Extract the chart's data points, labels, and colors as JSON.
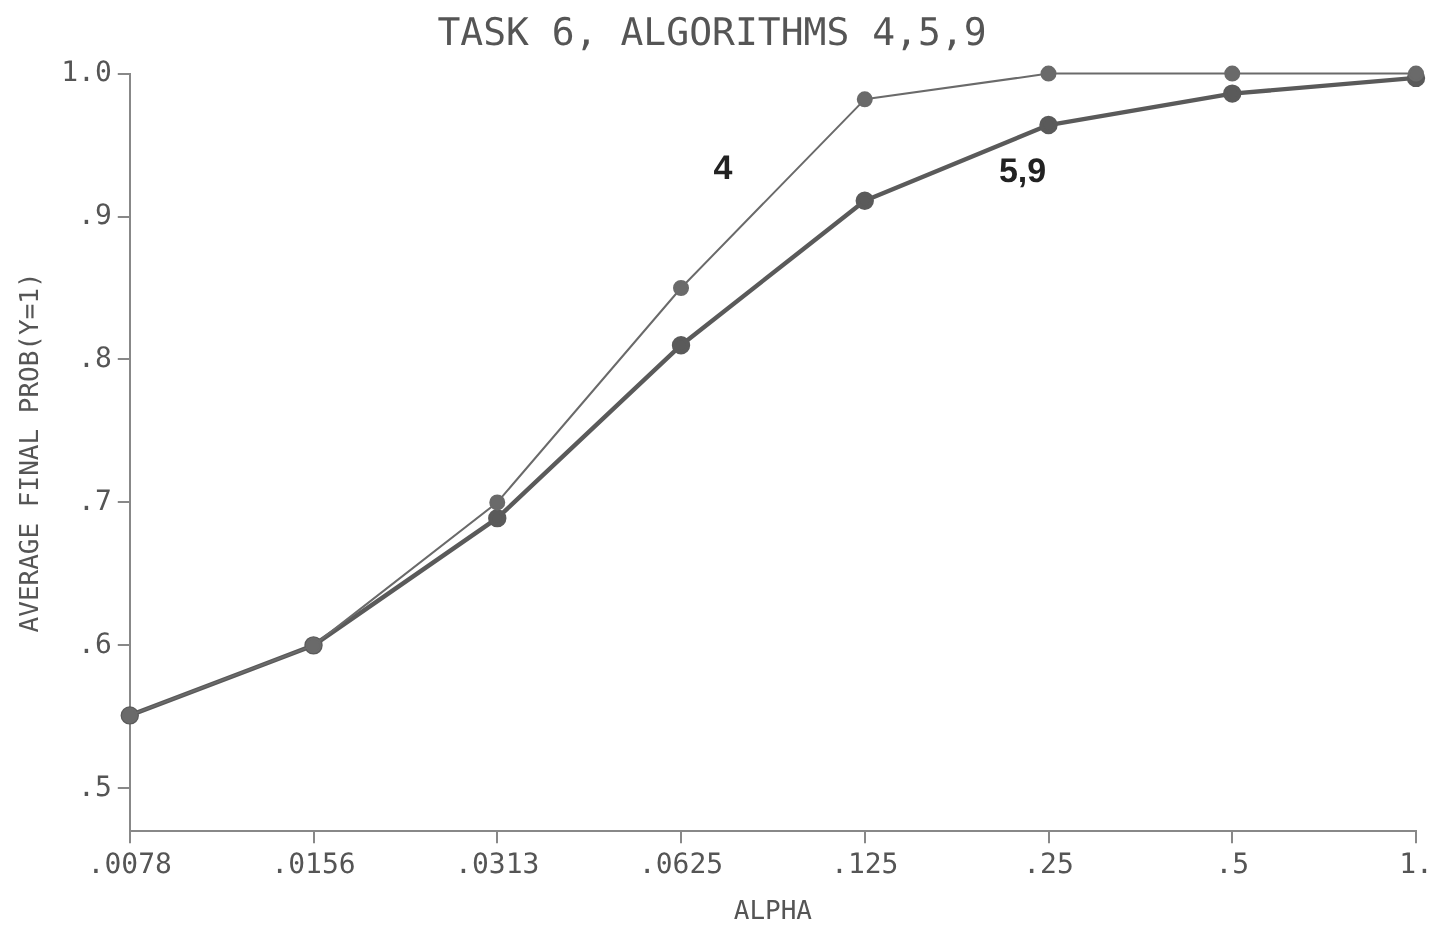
{
  "chart_data": {
    "type": "line",
    "title": "TASK 6, ALGORITHMS 4,5,9",
    "xlabel": "ALPHA",
    "ylabel": "AVERAGE FINAL PROB(Y=1)",
    "categories": [
      ".0078",
      ".0156",
      ".0313",
      ".0625",
      ".125",
      ".25",
      ".5",
      "1."
    ],
    "series": [
      {
        "name": "4",
        "color": "#6a6a6a",
        "values": [
          0.551,
          0.6,
          0.7,
          0.85,
          0.982,
          1.0,
          1.0,
          1.0
        ]
      },
      {
        "name": "5,9",
        "color": "#5a5a5a",
        "values": [
          0.551,
          0.6,
          0.689,
          0.81,
          0.911,
          0.964,
          0.986,
          0.997
        ]
      }
    ],
    "ylim": [
      0.47,
      1.0
    ],
    "yticks": [
      {
        "value": 0.5,
        "label": ".5"
      },
      {
        "value": 0.6,
        "label": ".6"
      },
      {
        "value": 0.7,
        "label": ".7"
      },
      {
        "value": 0.8,
        "label": ".8"
      },
      {
        "value": 0.9,
        "label": ".9"
      },
      {
        "value": 1.0,
        "label": "1.0"
      }
    ],
    "grid": false,
    "legend": false,
    "marker": "circle",
    "line_style": "solid"
  }
}
